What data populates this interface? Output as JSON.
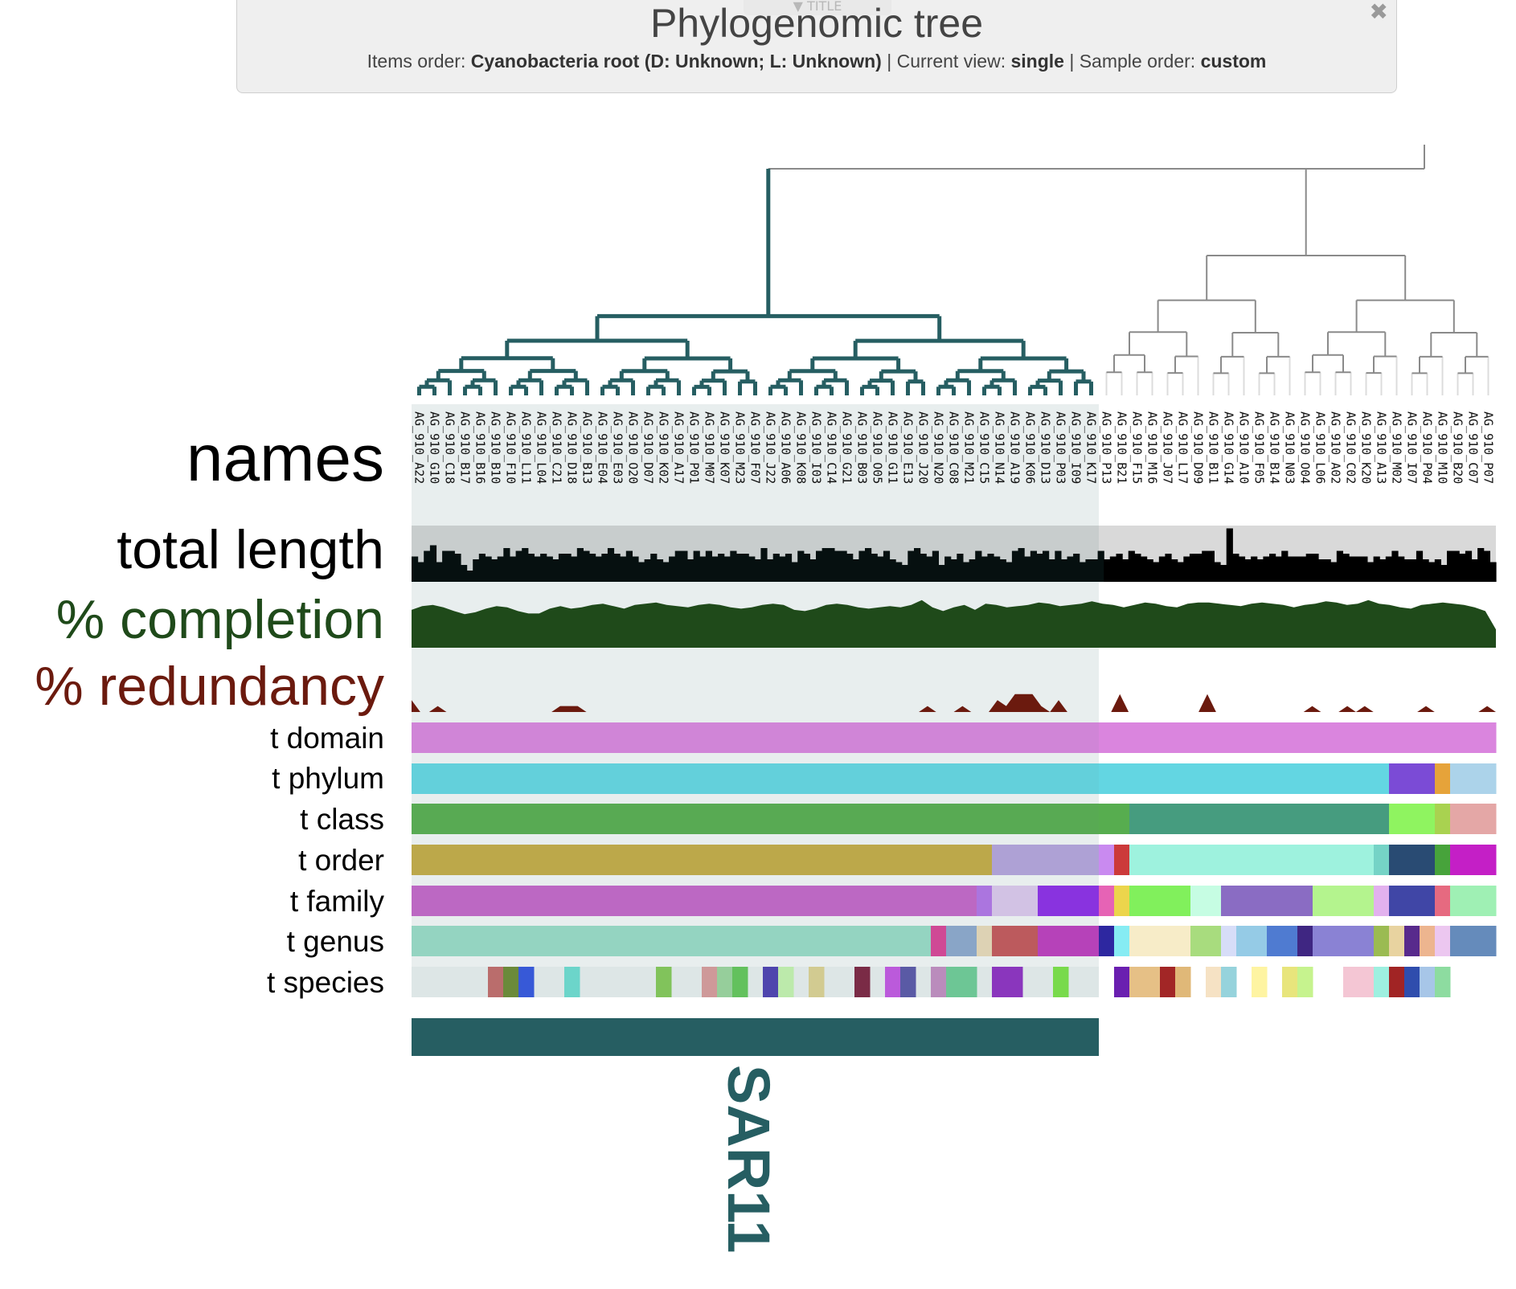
{
  "title_panel": {
    "tab_label": "▼ TITLE",
    "title": "Phylogenomic tree",
    "items_order_label": "Items order:",
    "items_order_value": "Cyanobacteria root (D: Unknown; L: Unknown)",
    "current_view_label": "Current view:",
    "current_view_value": "single",
    "sample_order_label": "Sample order:",
    "sample_order_value": "custom",
    "separator": "|",
    "close_glyph": "✖"
  },
  "layers": {
    "names": "names",
    "total_length": "total length",
    "completion": "% completion",
    "redundancy": "% redundancy",
    "t_domain": "t domain",
    "t_phylum": "t phylum",
    "t_class": "t class",
    "t_order": "t order",
    "t_family": "t family",
    "t_genus": "t genus",
    "t_species": "t species"
  },
  "layer_colors": {
    "completion": "#1f4a1a",
    "redundancy": "#6b1a0e",
    "total_length": "#0b0b0b",
    "clade": "#265e62"
  },
  "clade_label": "SAR11",
  "leaves": [
    "AG_910_A22",
    "AG_910_G10",
    "AG_910_C18",
    "AG_910_B17",
    "AG_910_B16",
    "AG_910_B10",
    "AG_910_F10",
    "AG_910_L11",
    "AG_910_L04",
    "AG_910_C21",
    "AG_910_D18",
    "AG_910_B13",
    "AG_910_E04",
    "AG_910_E03",
    "AG_910_O20",
    "AG_910_D07",
    "AG_910_K02",
    "AG_910_A17",
    "AG_910_P01",
    "AG_910_M07",
    "AG_910_K07",
    "AG_910_M23",
    "AG_910_F07",
    "AG_910_J22",
    "AG_910_A06",
    "AG_910_K08",
    "AG_910_I03",
    "AG_910_C14",
    "AG_910_G21",
    "AG_910_B03",
    "AG_910_O05",
    "AG_910_G11",
    "AG_910_E13",
    "AG_910_J20",
    "AG_910_N20",
    "AG_910_C08",
    "AG_910_M21",
    "AG_910_C15",
    "AG_910_N14",
    "AG_910_A19",
    "AG_910_K06",
    "AG_910_D13",
    "AG_910_P03",
    "AG_910_I09",
    "AG_910_K17",
    "AG_910_P13",
    "AG_910_B21",
    "AG_910_F15",
    "AG_910_M16",
    "AG_910_J07",
    "AG_910_L17",
    "AG_910_D09",
    "AG_910_B11",
    "AG_910_G14",
    "AG_910_A10",
    "AG_910_F05",
    "AG_910_B14",
    "AG_910_N03",
    "AG_910_O04",
    "AG_910_L06",
    "AG_910_A02",
    "AG_910_C02",
    "AG_910_K20",
    "AG_910_A13",
    "AG_910_M02",
    "AG_910_I07",
    "AG_910_P04",
    "AG_910_M10",
    "AG_910_B20",
    "AG_910_C07",
    "AG_910_P07"
  ],
  "total_length": [
    0.45,
    0.35,
    0.55,
    0.65,
    0.35,
    0.55,
    0.55,
    0.5,
    0.3,
    0.2,
    0.4,
    0.5,
    0.45,
    0.4,
    0.45,
    0.6,
    0.45,
    0.55,
    0.6,
    0.5,
    0.45,
    0.5,
    0.45,
    0.4,
    0.5,
    0.5,
    0.45,
    0.6,
    0.55,
    0.5,
    0.45,
    0.5,
    0.6,
    0.5,
    0.45,
    0.55,
    0.45,
    0.35,
    0.4,
    0.5,
    0.4,
    0.35,
    0.45,
    0.55,
    0.55,
    0.4,
    0.55,
    0.45,
    0.55,
    0.45,
    0.5,
    0.45,
    0.55,
    0.5,
    0.5,
    0.45,
    0.4,
    0.6,
    0.4,
    0.5,
    0.45,
    0.5,
    0.35,
    0.55,
    0.5,
    0.4,
    0.55,
    0.6,
    0.6,
    0.55,
    0.55,
    0.5,
    0.4,
    0.55,
    0.6,
    0.5,
    0.45,
    0.55,
    0.4,
    0.35,
    0.3,
    0.55,
    0.6,
    0.5,
    0.45,
    0.55,
    0.3,
    0.45,
    0.4,
    0.5,
    0.35,
    0.4,
    0.55,
    0.45,
    0.5,
    0.45,
    0.4,
    0.35,
    0.55,
    0.6,
    0.45,
    0.55,
    0.5,
    0.55,
    0.4,
    0.55,
    0.4,
    0.45,
    0.5,
    0.35,
    0.4,
    0.4,
    0.55,
    0.4,
    0.45,
    0.5,
    0.4,
    0.55,
    0.5,
    0.45,
    0.4,
    0.35,
    0.45,
    0.5,
    0.4,
    0.35,
    0.45,
    0.5,
    0.5,
    0.55,
    0.55,
    0.35,
    0.3,
    0.95,
    0.5,
    0.45,
    0.4,
    0.45,
    0.4,
    0.45,
    0.5,
    0.45,
    0.55,
    0.45,
    0.45,
    0.45,
    0.5,
    0.5,
    0.4,
    0.4,
    0.35,
    0.55,
    0.5,
    0.45,
    0.45,
    0.45,
    0.35,
    0.45,
    0.4,
    0.45,
    0.55,
    0.45,
    0.4,
    0.4,
    0.55,
    0.4,
    0.35,
    0.4,
    0.3,
    0.55,
    0.55,
    0.5,
    0.55,
    0.4,
    0.6,
    0.55,
    0.35
  ],
  "completion": [
    0.62,
    0.68,
    0.7,
    0.66,
    0.6,
    0.55,
    0.58,
    0.64,
    0.68,
    0.66,
    0.6,
    0.56,
    0.56,
    0.64,
    0.68,
    0.64,
    0.66,
    0.7,
    0.72,
    0.68,
    0.64,
    0.7,
    0.72,
    0.74,
    0.7,
    0.68,
    0.66,
    0.7,
    0.72,
    0.7,
    0.66,
    0.64,
    0.66,
    0.7,
    0.72,
    0.7,
    0.62,
    0.6,
    0.64,
    0.7,
    0.72,
    0.7,
    0.66,
    0.64,
    0.66,
    0.68,
    0.66,
    0.7,
    0.78,
    0.66,
    0.6,
    0.66,
    0.7,
    0.62,
    0.72,
    0.7,
    0.66,
    0.68,
    0.7,
    0.74,
    0.72,
    0.68,
    0.7,
    0.72,
    0.76,
    0.72,
    0.7,
    0.66,
    0.7,
    0.74,
    0.72,
    0.68,
    0.66,
    0.72,
    0.74,
    0.74,
    0.72,
    0.7,
    0.68,
    0.72,
    0.74,
    0.72,
    0.7,
    0.66,
    0.7,
    0.72,
    0.76,
    0.74,
    0.7,
    0.72,
    0.78,
    0.72,
    0.7,
    0.66,
    0.64,
    0.7,
    0.72,
    0.74,
    0.72,
    0.7,
    0.66,
    0.6,
    0.3
  ],
  "redundancy": [
    0.2,
    0.0,
    0.0,
    0.1,
    0.0,
    0.0,
    0.0,
    0.0,
    0.0,
    0.0,
    0.0,
    0.0,
    0.0,
    0.0,
    0.0,
    0.0,
    0.0,
    0.1,
    0.1,
    0.1,
    0.0,
    0.0,
    0.0,
    0.0,
    0.0,
    0.0,
    0.0,
    0.0,
    0.0,
    0.0,
    0.0,
    0.0,
    0.0,
    0.0,
    0.0,
    0.0,
    0.0,
    0.0,
    0.0,
    0.0,
    0.0,
    0.0,
    0.0,
    0.0,
    0.0,
    0.0,
    0.0,
    0.0,
    0.0,
    0.0,
    0.0,
    0.0,
    0.0,
    0.0,
    0.0,
    0.0,
    0.0,
    0.0,
    0.0,
    0.1,
    0.0,
    0.0,
    0.0,
    0.1,
    0.0,
    0.0,
    0.0,
    0.2,
    0.1,
    0.3,
    0.3,
    0.3,
    0.1,
    0.0,
    0.2,
    0.0,
    0.0,
    0.0,
    0.0,
    0.0,
    0.0,
    0.3,
    0.0,
    0.0,
    0.0,
    0.0,
    0.0,
    0.0,
    0.0,
    0.0,
    0.0,
    0.3,
    0.0,
    0.0,
    0.0,
    0.0,
    0.0,
    0.0,
    0.0,
    0.0,
    0.0,
    0.0,
    0.0,
    0.1,
    0.0,
    0.0,
    0.0,
    0.1,
    0.0,
    0.1,
    0.0,
    0.0,
    0.0,
    0.0,
    0.0,
    0.0,
    0.1,
    0.0,
    0.0,
    0.0,
    0.0,
    0.0,
    0.0,
    0.1,
    0.0
  ],
  "taxonomy": {
    "t_domain": [
      {
        "s": 0,
        "e": 71,
        "c": "#da85de"
      }
    ],
    "t_phylum": [
      {
        "s": 0,
        "e": 64,
        "c": "#63d6e2"
      },
      {
        "s": 64,
        "e": 67,
        "c": "#7b4bd6"
      },
      {
        "s": 67,
        "e": 68,
        "c": "#e6a33a"
      },
      {
        "s": 68,
        "e": 71,
        "c": "#acd3ea"
      }
    ],
    "t_class": [
      {
        "s": 0,
        "e": 47,
        "c": "#57ad4f"
      },
      {
        "s": 47,
        "e": 64,
        "c": "#469c7f"
      },
      {
        "s": 64,
        "e": 67,
        "c": "#8ff460"
      },
      {
        "s": 67,
        "e": 68,
        "c": "#a9d250"
      },
      {
        "s": 68,
        "e": 71,
        "c": "#e4a7a6"
      }
    ],
    "t_order": [
      {
        "s": 0,
        "e": 38,
        "c": "#c4ab45"
      },
      {
        "s": 38,
        "e": 45,
        "c": "#b5a3dc"
      },
      {
        "s": 45,
        "e": 46,
        "c": "#c98af0"
      },
      {
        "s": 46,
        "e": 47,
        "c": "#cc3a3a"
      },
      {
        "s": 47,
        "e": 63,
        "c": "#9ef2de"
      },
      {
        "s": 63,
        "e": 64,
        "c": "#75d3c6"
      },
      {
        "s": 64,
        "e": 67,
        "c": "#294b73"
      },
      {
        "s": 67,
        "e": 68,
        "c": "#47a33b"
      },
      {
        "s": 68,
        "e": 71,
        "c": "#c41fc6"
      }
    ],
    "t_family": [
      {
        "s": 0,
        "e": 37,
        "c": "#c465c8"
      },
      {
        "s": 37,
        "e": 38,
        "c": "#b173e6"
      },
      {
        "s": 38,
        "e": 41,
        "c": "#dcc7ec"
      },
      {
        "s": 41,
        "e": 45,
        "c": "#8c2ce6"
      },
      {
        "s": 45,
        "e": 46,
        "c": "#e663b5"
      },
      {
        "s": 46,
        "e": 47,
        "c": "#ecd54c"
      },
      {
        "s": 47,
        "e": 51,
        "c": "#81f05c"
      },
      {
        "s": 51,
        "e": 53,
        "c": "#c6fde3"
      },
      {
        "s": 53,
        "e": 59,
        "c": "#8a6cc3"
      },
      {
        "s": 59,
        "e": 63,
        "c": "#b4f48e"
      },
      {
        "s": 63,
        "e": 64,
        "c": "#e2b1ee"
      },
      {
        "s": 64,
        "e": 67,
        "c": "#4046a6"
      },
      {
        "s": 67,
        "e": 68,
        "c": "#e66a80"
      },
      {
        "s": 68,
        "e": 71,
        "c": "#9ff0b4"
      }
    ],
    "t_genus": [
      {
        "s": 0,
        "e": 34,
        "c": "#98dbc6"
      },
      {
        "s": 34,
        "e": 35,
        "c": "#d84496"
      },
      {
        "s": 35,
        "e": 37,
        "c": "#8da8cc"
      },
      {
        "s": 37,
        "e": 38,
        "c": "#e8d8b8"
      },
      {
        "s": 38,
        "e": 41,
        "c": "#c4565a"
      },
      {
        "s": 41,
        "e": 45,
        "c": "#bd3cbd"
      },
      {
        "s": 45,
        "e": 46,
        "c": "#2d27a0"
      },
      {
        "s": 46,
        "e": 47,
        "c": "#86ecf3"
      },
      {
        "s": 47,
        "e": 51,
        "c": "#f7ecc8"
      },
      {
        "s": 51,
        "e": 53,
        "c": "#a8dc7e"
      },
      {
        "s": 53,
        "e": 54,
        "c": "#d7ddf8"
      },
      {
        "s": 54,
        "e": 56,
        "c": "#95cbe6"
      },
      {
        "s": 56,
        "e": 58,
        "c": "#4f7bd1"
      },
      {
        "s": 58,
        "e": 59,
        "c": "#3f2682"
      },
      {
        "s": 59,
        "e": 63,
        "c": "#8a82d4"
      },
      {
        "s": 63,
        "e": 64,
        "c": "#9bbb52"
      },
      {
        "s": 64,
        "e": 65,
        "c": "#e8d3a0"
      },
      {
        "s": 65,
        "e": 66,
        "c": "#582a8c"
      },
      {
        "s": 66,
        "e": 67,
        "c": "#edb58f"
      },
      {
        "s": 67,
        "e": 68,
        "c": "#ecc7f0"
      },
      {
        "s": 68,
        "e": 71,
        "c": "#658bbb"
      }
    ],
    "t_species": [
      {
        "s": 5,
        "e": 6,
        "c": "#c26b6a"
      },
      {
        "s": 6,
        "e": 7,
        "c": "#6c8a34"
      },
      {
        "s": 7,
        "e": 8,
        "c": "#3455de"
      },
      {
        "s": 10,
        "e": 11,
        "c": "#6ddcd0"
      },
      {
        "s": 16,
        "e": 17,
        "c": "#84c857"
      },
      {
        "s": 19,
        "e": 20,
        "c": "#d79b9b"
      },
      {
        "s": 20,
        "e": 21,
        "c": "#9bd49d"
      },
      {
        "s": 21,
        "e": 22,
        "c": "#63c65a"
      },
      {
        "s": 23,
        "e": 24,
        "c": "#4c3fb0"
      },
      {
        "s": 24,
        "e": 25,
        "c": "#c4f2ae"
      },
      {
        "s": 26,
        "e": 27,
        "c": "#dcd192"
      },
      {
        "s": 29,
        "e": 30,
        "c": "#7c2341"
      },
      {
        "s": 31,
        "e": 32,
        "c": "#c356e2"
      },
      {
        "s": 32,
        "e": 33,
        "c": "#5a56a8"
      },
      {
        "s": 34,
        "e": 35,
        "c": "#c28cc0"
      },
      {
        "s": 35,
        "e": 37,
        "c": "#6ecb96"
      },
      {
        "s": 38,
        "e": 40,
        "c": "#8e2fc2"
      },
      {
        "s": 42,
        "e": 43,
        "c": "#7ae146"
      },
      {
        "s": 46,
        "e": 47,
        "c": "#6a1fb0"
      },
      {
        "s": 47,
        "e": 49,
        "c": "#e6c086"
      },
      {
        "s": 49,
        "e": 50,
        "c": "#a22626"
      },
      {
        "s": 50,
        "e": 51,
        "c": "#e0b878"
      },
      {
        "s": 52,
        "e": 53,
        "c": "#f6e2c4"
      },
      {
        "s": 53,
        "e": 54,
        "c": "#96d3dc"
      },
      {
        "s": 55,
        "e": 56,
        "c": "#fef4a2"
      },
      {
        "s": 57,
        "e": 58,
        "c": "#e8e57c"
      },
      {
        "s": 58,
        "e": 59,
        "c": "#c6f38e"
      },
      {
        "s": 61,
        "e": 63,
        "c": "#f4c6d4"
      },
      {
        "s": 63,
        "e": 64,
        "c": "#9ef0e0"
      },
      {
        "s": 64,
        "e": 65,
        "c": "#a12424"
      },
      {
        "s": 65,
        "e": 66,
        "c": "#2f4dad"
      },
      {
        "s": 66,
        "e": 67,
        "c": "#a7c6e8"
      },
      {
        "s": 67,
        "e": 68,
        "c": "#8ddca0"
      }
    ]
  }
}
